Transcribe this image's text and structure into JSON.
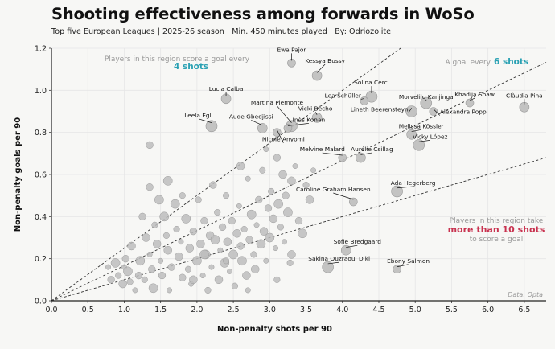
{
  "title": "Shooting effectiveness among forwards in WoSo",
  "subtitle": "Top five European Leagues | 2025-26 season | Min. 450 minutes played | By: Odriozolite",
  "credit": "Data: Opta",
  "colors": {
    "point": "#bdbdbd",
    "point_stroke": "#9a9a9a",
    "teal": "#2aa1b3",
    "red": "#c8324f",
    "note": "#999999",
    "grid": "#e6e6e6"
  },
  "chart_data": {
    "type": "scatter",
    "xlabel": "Non-penalty shots per 90",
    "ylabel": "Non-penalty goals per 90",
    "xlim": [
      0,
      6.8
    ],
    "ylim": [
      0,
      1.2
    ],
    "x_ticks": [
      "0.0",
      "0.5",
      "1.0",
      "1.5",
      "2.0",
      "2.5",
      "3.0",
      "3.5",
      "4.0",
      "4.5",
      "5.0",
      "5.5",
      "6.0",
      "6.5"
    ],
    "y_ticks": [
      "0.0",
      "0.2",
      "0.4",
      "0.6",
      "0.8",
      "1.0",
      "1.2"
    ],
    "grid": true,
    "reference_lines": [
      {
        "shots_per_goal": 4
      },
      {
        "shots_per_goal": 6
      },
      {
        "shots_per_goal": 10
      }
    ],
    "annotations": {
      "top_left": {
        "text": "Players in this region score a goal every",
        "highlight": "4 shots"
      },
      "top_right": {
        "text": "A goal every",
        "highlight": "6 shots"
      },
      "bottom_right": {
        "line1": "Players in this region take",
        "highlight": "more than 10 shots",
        "line3": "to score a goal"
      }
    },
    "labeled_points": [
      {
        "name": "Ewa Pajor",
        "x": 3.3,
        "y": 1.13
      },
      {
        "name": "Kessya Bussy",
        "x": 3.65,
        "y": 1.07
      },
      {
        "name": "Solina Cerci",
        "x": 4.4,
        "y": 0.97
      },
      {
        "name": "Lea Schüller",
        "x": 4.3,
        "y": 0.95
      },
      {
        "name": "Lucia Calba",
        "x": 2.4,
        "y": 0.96
      },
      {
        "name": "Morvelilo Kanjinga",
        "x": 5.15,
        "y": 0.94
      },
      {
        "name": "Khadija Shaw",
        "x": 5.75,
        "y": 0.94
      },
      {
        "name": "Clàudia Pina",
        "x": 6.5,
        "y": 0.92
      },
      {
        "name": "Lineth Beerensteyn",
        "x": 4.95,
        "y": 0.9
      },
      {
        "name": "Alexandra Popp",
        "x": 5.25,
        "y": 0.9
      },
      {
        "name": "Vicki Bècho",
        "x": 3.65,
        "y": 0.87
      },
      {
        "name": "Martina Piemonte",
        "x": 3.3,
        "y": 0.83
      },
      {
        "name": "Inès Konan",
        "x": 3.25,
        "y": 0.82
      },
      {
        "name": "Aude Gbedjissi",
        "x": 2.9,
        "y": 0.82
      },
      {
        "name": "Leela Egli",
        "x": 2.2,
        "y": 0.83
      },
      {
        "name": "Nicole Anyomi",
        "x": 3.1,
        "y": 0.8
      },
      {
        "name": "Melissa Kössler",
        "x": 4.95,
        "y": 0.79
      },
      {
        "name": "Vicky López",
        "x": 5.05,
        "y": 0.74
      },
      {
        "name": "Melvine Malard",
        "x": 4.0,
        "y": 0.68
      },
      {
        "name": "Aurélie Csillag",
        "x": 4.25,
        "y": 0.68
      },
      {
        "name": "Ada Hegerberg",
        "x": 4.75,
        "y": 0.52
      },
      {
        "name": "Caroline Graham Hansen",
        "x": 4.15,
        "y": 0.47
      },
      {
        "name": "Sofie Bredgaard",
        "x": 4.05,
        "y": 0.24
      },
      {
        "name": "Sakina Ouzraoui Diki",
        "x": 3.8,
        "y": 0.16
      },
      {
        "name": "Ebony Salmon",
        "x": 4.75,
        "y": 0.15
      }
    ],
    "other_points": [
      [
        0.78,
        0.16
      ],
      [
        0.82,
        0.1
      ],
      [
        0.88,
        0.18
      ],
      [
        0.92,
        0.12
      ],
      [
        0.98,
        0.08
      ],
      [
        1.0,
        0.16
      ],
      [
        1.02,
        0.2
      ],
      [
        1.05,
        0.14
      ],
      [
        1.08,
        0.09
      ],
      [
        1.1,
        0.26
      ],
      [
        1.15,
        0.05
      ],
      [
        1.2,
        0.12
      ],
      [
        1.22,
        0.19
      ],
      [
        1.28,
        0.1
      ],
      [
        1.3,
        0.3
      ],
      [
        1.35,
        0.22
      ],
      [
        1.38,
        0.15
      ],
      [
        1.4,
        0.06
      ],
      [
        1.42,
        0.36
      ],
      [
        1.45,
        0.27
      ],
      [
        1.5,
        0.19
      ],
      [
        1.52,
        0.12
      ],
      [
        1.55,
        0.4
      ],
      [
        1.58,
        0.31
      ],
      [
        1.6,
        0.24
      ],
      [
        1.62,
        0.05
      ],
      [
        1.65,
        0.16
      ],
      [
        1.7,
        0.46
      ],
      [
        1.72,
        0.34
      ],
      [
        1.75,
        0.21
      ],
      [
        1.78,
        0.28
      ],
      [
        1.8,
        0.11
      ],
      [
        1.85,
        0.39
      ],
      [
        1.88,
        0.15
      ],
      [
        1.9,
        0.25
      ],
      [
        1.92,
        0.08
      ],
      [
        1.95,
        0.33
      ],
      [
        2.0,
        0.19
      ],
      [
        2.02,
        0.48
      ],
      [
        2.05,
        0.27
      ],
      [
        2.08,
        0.12
      ],
      [
        2.1,
        0.38
      ],
      [
        2.12,
        0.22
      ],
      [
        2.15,
        0.05
      ],
      [
        2.18,
        0.31
      ],
      [
        2.2,
        0.16
      ],
      [
        2.22,
        0.55
      ],
      [
        2.25,
        0.29
      ],
      [
        2.28,
        0.42
      ],
      [
        2.3,
        0.1
      ],
      [
        2.32,
        0.24
      ],
      [
        2.35,
        0.35
      ],
      [
        2.38,
        0.18
      ],
      [
        2.4,
        0.5
      ],
      [
        2.42,
        0.28
      ],
      [
        2.45,
        0.14
      ],
      [
        2.48,
        0.38
      ],
      [
        2.5,
        0.22
      ],
      [
        2.52,
        0.07
      ],
      [
        2.55,
        0.32
      ],
      [
        2.58,
        0.45
      ],
      [
        2.6,
        0.26
      ],
      [
        2.62,
        0.19
      ],
      [
        2.65,
        0.34
      ],
      [
        2.68,
        0.12
      ],
      [
        2.7,
        0.58
      ],
      [
        2.72,
        0.29
      ],
      [
        2.75,
        0.41
      ],
      [
        2.78,
        0.22
      ],
      [
        2.8,
        0.15
      ],
      [
        2.82,
        0.36
      ],
      [
        2.85,
        0.48
      ],
      [
        2.88,
        0.27
      ],
      [
        2.9,
        0.62
      ],
      [
        2.92,
        0.33
      ],
      [
        2.95,
        0.19
      ],
      [
        2.98,
        0.44
      ],
      [
        3.0,
        0.3
      ],
      [
        3.02,
        0.52
      ],
      [
        3.05,
        0.39
      ],
      [
        3.08,
        0.25
      ],
      [
        3.1,
        0.68
      ],
      [
        3.12,
        0.46
      ],
      [
        3.15,
        0.35
      ],
      [
        3.18,
        0.6
      ],
      [
        3.2,
        0.28
      ],
      [
        3.22,
        0.5
      ],
      [
        3.25,
        0.42
      ],
      [
        3.28,
        0.18
      ],
      [
        3.3,
        0.57
      ],
      [
        3.35,
        0.64
      ],
      [
        3.4,
        0.38
      ],
      [
        3.45,
        0.32
      ],
      [
        3.5,
        0.55
      ],
      [
        3.55,
        0.48
      ],
      [
        3.6,
        0.62
      ],
      [
        1.35,
        0.54
      ],
      [
        1.6,
        0.57
      ],
      [
        1.8,
        0.5
      ],
      [
        2.6,
        0.64
      ],
      [
        2.95,
        0.72
      ],
      [
        1.35,
        0.74
      ],
      [
        2.1,
        0.22
      ],
      [
        2.4,
        0.19
      ],
      [
        1.95,
        0.1
      ],
      [
        2.7,
        0.05
      ],
      [
        1.25,
        0.4
      ],
      [
        1.48,
        0.48
      ],
      [
        3.1,
        0.1
      ],
      [
        3.3,
        0.22
      ]
    ]
  }
}
